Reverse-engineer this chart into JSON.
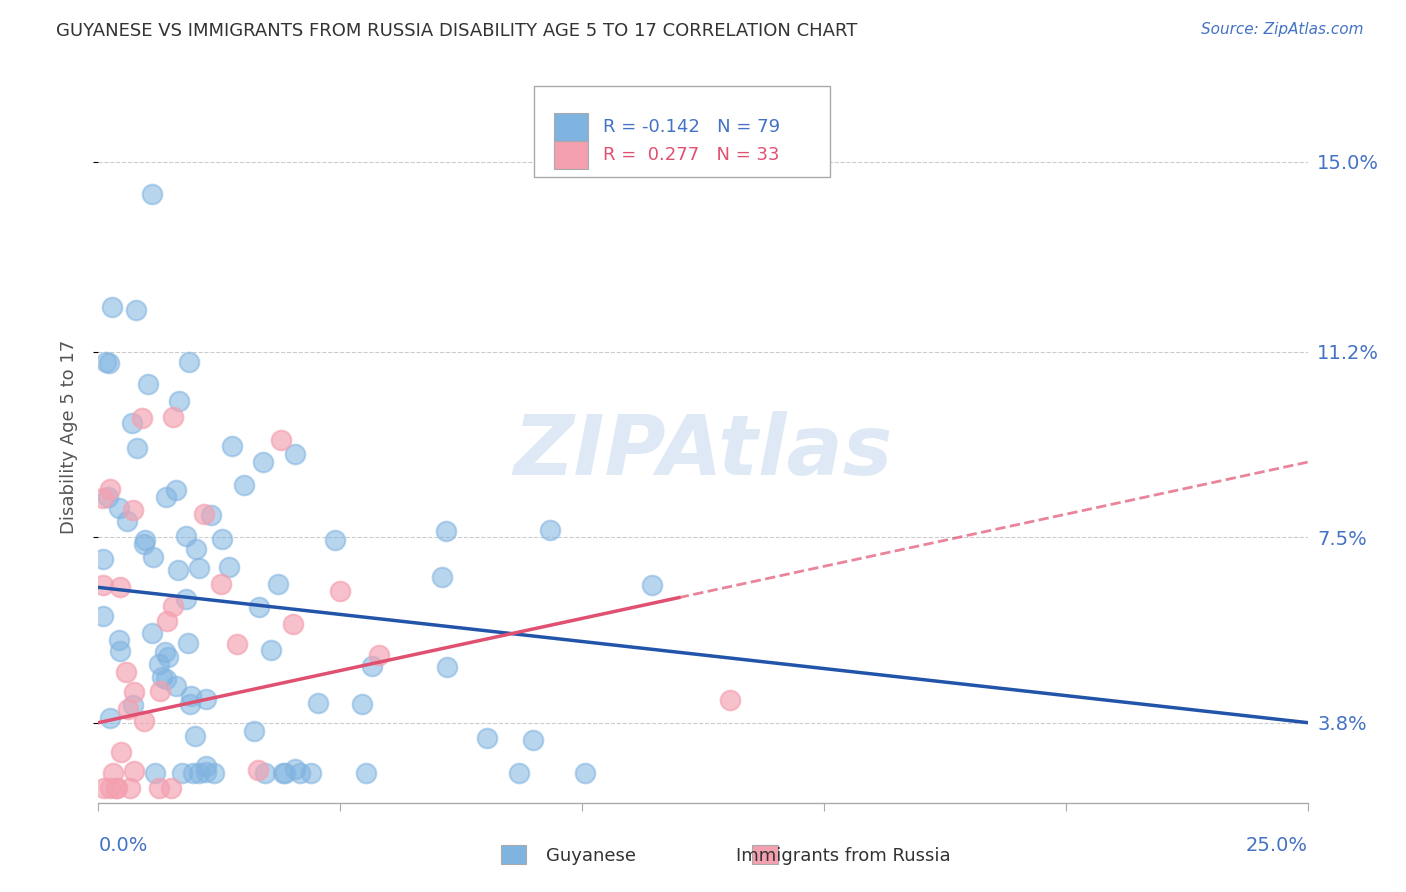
{
  "title": "GUYANESE VS IMMIGRANTS FROM RUSSIA DISABILITY AGE 5 TO 17 CORRELATION CHART",
  "source": "Source: ZipAtlas.com",
  "ylabel": "Disability Age 5 to 17",
  "ytick_labels": [
    "3.8%",
    "7.5%",
    "11.2%",
    "15.0%"
  ],
  "ytick_values": [
    0.038,
    0.075,
    0.112,
    0.15
  ],
  "xlim": [
    0.0,
    0.25
  ],
  "ylim": [
    0.022,
    0.168
  ],
  "legend_line1": "R = -0.142   N = 79",
  "legend_line2": "R =  0.277   N = 33",
  "series1_color": "#7fb3e0",
  "series2_color": "#f4a0b0",
  "line1_color": "#2255aa",
  "line2_color": "#e05070",
  "watermark": "ZIPAtlas",
  "title_color": "#333333",
  "source_color": "#4472c4",
  "ytick_color": "#4472c4",
  "xlabel_color": "#4472c4"
}
